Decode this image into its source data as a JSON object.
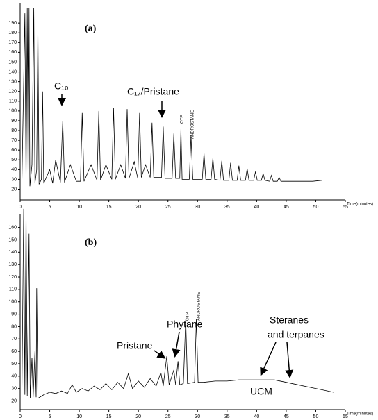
{
  "chart_data": [
    {
      "type": "line",
      "x_label": "Time(minutes)",
      "annotations": [
        "(a)",
        "C₁₀",
        "C₁₇/Pristane",
        "OTP",
        "ANDROSTANE"
      ],
      "xlim": [
        0,
        55
      ],
      "xticks": [
        0,
        5,
        10,
        15,
        20,
        25,
        30,
        35,
        40,
        45,
        50,
        55
      ],
      "ylim": [
        9,
        210
      ],
      "yticks": [
        20,
        30,
        40,
        50,
        60,
        70,
        80,
        90,
        100,
        110,
        120,
        130,
        140,
        150,
        160,
        170,
        180,
        190
      ],
      "color": "#000000",
      "x": [
        0.3,
        0.8,
        1.0,
        1.2,
        1.35,
        1.5,
        1.65,
        2.0,
        2.3,
        2.5,
        2.8,
        3.0,
        3.2,
        3.6,
        3.8,
        4.0,
        5.0,
        5.5,
        6.0,
        6.8,
        7.2,
        7.5,
        8.5,
        9.5,
        10.2,
        10.5,
        10.8,
        12.0,
        13.0,
        13.3,
        13.6,
        14.5,
        15.5,
        15.8,
        16.1,
        17.0,
        17.8,
        18.1,
        18.4,
        19.3,
        19.9,
        20.2,
        20.5,
        21.2,
        22.0,
        22.3,
        22.6,
        23.9,
        24.2,
        24.5,
        25.7,
        26.0,
        26.3,
        27.0,
        27.2,
        27.4,
        28.6,
        28.9,
        29.2,
        30.8,
        31.1,
        31.4,
        32.3,
        32.6,
        32.9,
        33.8,
        34.1,
        34.4,
        35.3,
        35.6,
        35.9,
        36.7,
        37.0,
        37.3,
        38.1,
        38.4,
        38.7,
        39.5,
        39.8,
        40.1,
        40.8,
        41.1,
        41.4,
        42.2,
        42.5,
        42.8,
        43.5,
        43.8,
        44.1,
        45.0,
        46.5,
        48.0,
        49.5,
        51.0
      ],
      "values": [
        30,
        200,
        25,
        205,
        24,
        205,
        23,
        45,
        205,
        26,
        40,
        187,
        25,
        30,
        120,
        26,
        40,
        26,
        50,
        27,
        90,
        27,
        45,
        28,
        28,
        98,
        28,
        45,
        29,
        100,
        29,
        45,
        30,
        103,
        30,
        45,
        31,
        102,
        31,
        48,
        31,
        98,
        32,
        45,
        32,
        88,
        32,
        32,
        84,
        31,
        31,
        77,
        31,
        31,
        82,
        30,
        30,
        75,
        30,
        30,
        57,
        30,
        30,
        52,
        30,
        29,
        49,
        29,
        29,
        47,
        29,
        29,
        44,
        29,
        29,
        41,
        29,
        29,
        38,
        29,
        29,
        36,
        29,
        28,
        34,
        28,
        28,
        32,
        28,
        28,
        28,
        28,
        28,
        29
      ]
    },
    {
      "type": "line",
      "x_label": "Time(minutes)",
      "annotations": [
        "(b)",
        "Phytane",
        "Pristane",
        "OTP",
        "ANDROSTANE",
        "Steranes",
        "and terpanes",
        "UCM"
      ],
      "xlim": [
        0,
        55
      ],
      "xticks": [
        0,
        5,
        10,
        15,
        20,
        25,
        30,
        35,
        40,
        45,
        50,
        55
      ],
      "ylim": [
        13,
        171
      ],
      "yticks": [
        20,
        30,
        40,
        50,
        60,
        70,
        80,
        90,
        100,
        110,
        120,
        130,
        140,
        150,
        160
      ],
      "color": "#000000",
      "x": [
        0.3,
        0.6,
        0.8,
        1.0,
        1.2,
        1.5,
        1.7,
        2.0,
        2.2,
        2.5,
        2.7,
        2.8,
        3.0,
        4.0,
        5.0,
        6.0,
        7.0,
        8.0,
        8.8,
        9.5,
        10.5,
        11.5,
        12.5,
        13.5,
        14.5,
        15.5,
        16.5,
        17.5,
        18.3,
        19.0,
        20.0,
        21.0,
        22.0,
        23.0,
        23.8,
        24.2,
        24.8,
        25.2,
        26.0,
        26.3,
        26.7,
        27.0,
        27.6,
        28.0,
        28.3,
        29.5,
        29.8,
        30.1,
        31,
        33,
        35,
        37,
        39,
        41,
        43,
        45,
        47,
        49,
        51,
        53
      ],
      "values": [
        30,
        175,
        25,
        175,
        24,
        155,
        22,
        55,
        23,
        60,
        23,
        111,
        22,
        25,
        27,
        26,
        28,
        26,
        33,
        27,
        30,
        28,
        32,
        29,
        34,
        29,
        35,
        30,
        42,
        30,
        36,
        31,
        38,
        32,
        43,
        32,
        56,
        33,
        45,
        33,
        52,
        33,
        34,
        86,
        34,
        35,
        86,
        35,
        35,
        36,
        36,
        37,
        37,
        37,
        37,
        35,
        33,
        31,
        29,
        27
      ]
    }
  ]
}
